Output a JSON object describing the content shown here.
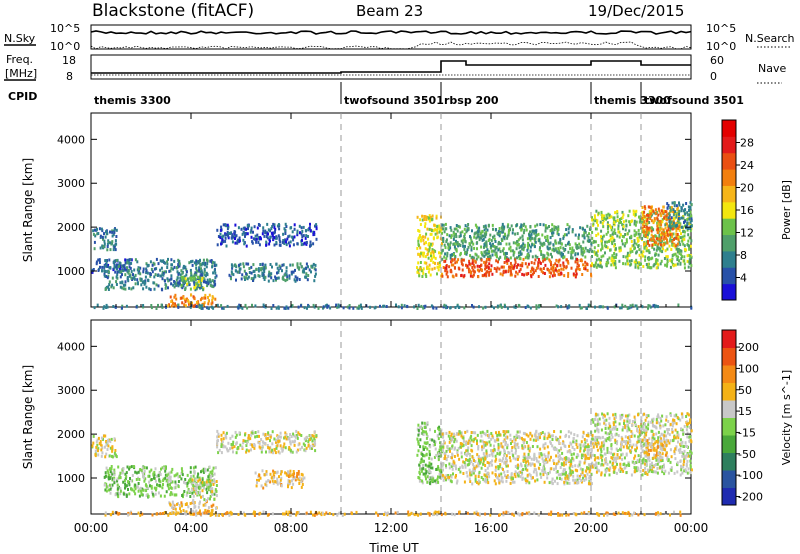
{
  "header": {
    "title": "Blackstone (fitACF)",
    "beam": "Beam 23",
    "date": "19/Dec/2015"
  },
  "sky_panel": {
    "left_label": "N.Sky",
    "right_label": "N.Search",
    "left_ticks": [
      "10^5",
      "10^0"
    ],
    "right_ticks": [
      "10^5",
      "10^0"
    ]
  },
  "freq_panel": {
    "left_label_1": "Freq.",
    "left_label_2": "[MHz]",
    "left_ticks": [
      "18",
      "8"
    ],
    "right_label": "Nave",
    "right_ticks": [
      "60",
      "0"
    ]
  },
  "cpid": {
    "label": "CPID",
    "segments": [
      {
        "start_h": 0.0,
        "end_h": 10.0,
        "name": "themis 3300"
      },
      {
        "start_h": 10.0,
        "end_h": 14.0,
        "name": "twofsound 3501"
      },
      {
        "start_h": 14.0,
        "end_h": 20.0,
        "name": "rbsp 200"
      },
      {
        "start_h": 20.0,
        "end_h": 22.0,
        "name": "themis 3300"
      },
      {
        "start_h": 22.0,
        "end_h": 24.0,
        "name": "twofsound 3501"
      }
    ]
  },
  "chart_data": [
    {
      "type": "heatmap",
      "title": "",
      "xlabel": "Time UT",
      "ylabel": "Slant Range [km]",
      "xlim": [
        0,
        24
      ],
      "ylim": [
        180,
        4600
      ],
      "x_ticks": [
        0,
        4,
        8,
        12,
        16,
        20,
        24
      ],
      "x_tick_labels": [
        "00:00",
        "04:00",
        "08:00",
        "12:00",
        "16:00",
        "20:00",
        "00:00"
      ],
      "y_ticks": [
        1000,
        2000,
        3000,
        4000
      ],
      "y_tick_labels": [
        "1000",
        "2000",
        "3000",
        "4000"
      ],
      "mode_change_lines_h": [
        10.0,
        14.0,
        20.0,
        22.0
      ],
      "colorbar": {
        "label": "Power [dB]",
        "tick_labels": [
          "4",
          "8",
          "12",
          "16",
          "20",
          "24",
          "28"
        ],
        "colors": [
          "#1a10d8",
          "#2851a8",
          "#2e7f8e",
          "#4f9f6a",
          "#6cc24a",
          "#f3e60f",
          "#f6b519",
          "#f27f0e",
          "#ea4f12",
          "#e31b1b",
          "#e30000"
        ]
      },
      "regions": [
        {
          "t0": 0.0,
          "t1": 1.0,
          "r0": 1500,
          "r1": 2000,
          "level": 2
        },
        {
          "t0": 0.0,
          "t1": 1.6,
          "r0": 1000,
          "r1": 1300,
          "level": 1
        },
        {
          "t0": 0.5,
          "t1": 5.0,
          "r0": 600,
          "r1": 1300,
          "level": 2
        },
        {
          "t0": 3.0,
          "t1": 5.0,
          "r0": 220,
          "r1": 500,
          "level": 7
        },
        {
          "t0": 3.5,
          "t1": 4.5,
          "r0": 600,
          "r1": 900,
          "level": 4
        },
        {
          "t0": 5.0,
          "t1": 9.0,
          "r0": 1600,
          "r1": 2100,
          "level": 1
        },
        {
          "t0": 5.5,
          "t1": 9.0,
          "r0": 800,
          "r1": 1200,
          "level": 2
        },
        {
          "t0": 0.0,
          "t1": 24.0,
          "r0": 180,
          "r1": 260,
          "level": 2
        },
        {
          "t0": 13.0,
          "t1": 14.0,
          "r0": 900,
          "r1": 2300,
          "level": 5
        },
        {
          "t0": 14.0,
          "t1": 20.0,
          "r0": 1300,
          "r1": 2100,
          "level": 3
        },
        {
          "t0": 14.0,
          "t1": 20.0,
          "r0": 900,
          "r1": 1300,
          "level": 8
        },
        {
          "t0": 20.0,
          "t1": 24.0,
          "r0": 1100,
          "r1": 2400,
          "level": 4
        },
        {
          "t0": 22.0,
          "t1": 23.5,
          "r0": 1600,
          "r1": 2500,
          "level": 7
        },
        {
          "t0": 23.0,
          "t1": 24.0,
          "r0": 2000,
          "r1": 2600,
          "level": 2
        }
      ]
    },
    {
      "type": "heatmap",
      "title": "",
      "xlabel": "Time UT",
      "ylabel": "Slant Range [km]",
      "xlim": [
        0,
        24
      ],
      "ylim": [
        180,
        4600
      ],
      "x_ticks": [
        0,
        4,
        8,
        12,
        16,
        20,
        24
      ],
      "x_tick_labels": [
        "00:00",
        "04:00",
        "08:00",
        "12:00",
        "16:00",
        "20:00",
        "00:00"
      ],
      "y_ticks": [
        1000,
        2000,
        3000,
        4000
      ],
      "y_tick_labels": [
        "1000",
        "2000",
        "3000",
        "4000"
      ],
      "mode_change_lines_h": [
        10.0,
        14.0,
        20.0,
        22.0
      ],
      "colorbar": {
        "label": "Velocity [m s^-1]",
        "tick_labels": [
          "200",
          "100",
          "50",
          "15",
          "-15",
          "-50",
          "-100",
          "-200"
        ],
        "colors": [
          "#1f2bb0",
          "#2a54a0",
          "#2e7f5e",
          "#49a83a",
          "#7cd24a",
          "#c8c8c8",
          "#f4b217",
          "#f48a16",
          "#ec5412",
          "#e31b1b"
        ]
      },
      "regions": [
        {
          "t0": 0.0,
          "t1": 1.0,
          "r0": 1500,
          "r1": 2000,
          "level": 5
        },
        {
          "t0": 0.5,
          "t1": 5.0,
          "r0": 600,
          "r1": 1300,
          "level": 4
        },
        {
          "t0": 3.0,
          "t1": 5.0,
          "r0": 220,
          "r1": 500,
          "level": 6
        },
        {
          "t0": 4.0,
          "t1": 5.0,
          "r0": 500,
          "r1": 1000,
          "level": 5
        },
        {
          "t0": 5.0,
          "t1": 9.0,
          "r0": 1600,
          "r1": 2100,
          "level": 5
        },
        {
          "t0": 6.5,
          "t1": 8.5,
          "r0": 800,
          "r1": 1200,
          "level": 6
        },
        {
          "t0": 0.0,
          "t1": 24.0,
          "r0": 180,
          "r1": 260,
          "level": 6
        },
        {
          "t0": 13.0,
          "t1": 14.0,
          "r0": 900,
          "r1": 2300,
          "level": 4
        },
        {
          "t0": 14.0,
          "t1": 20.0,
          "r0": 900,
          "r1": 2100,
          "level": 5
        },
        {
          "t0": 20.0,
          "t1": 24.0,
          "r0": 1100,
          "r1": 2500,
          "level": 5
        },
        {
          "t0": 22.0,
          "t1": 23.0,
          "r0": 1500,
          "r1": 1900,
          "level": 6
        }
      ]
    }
  ]
}
